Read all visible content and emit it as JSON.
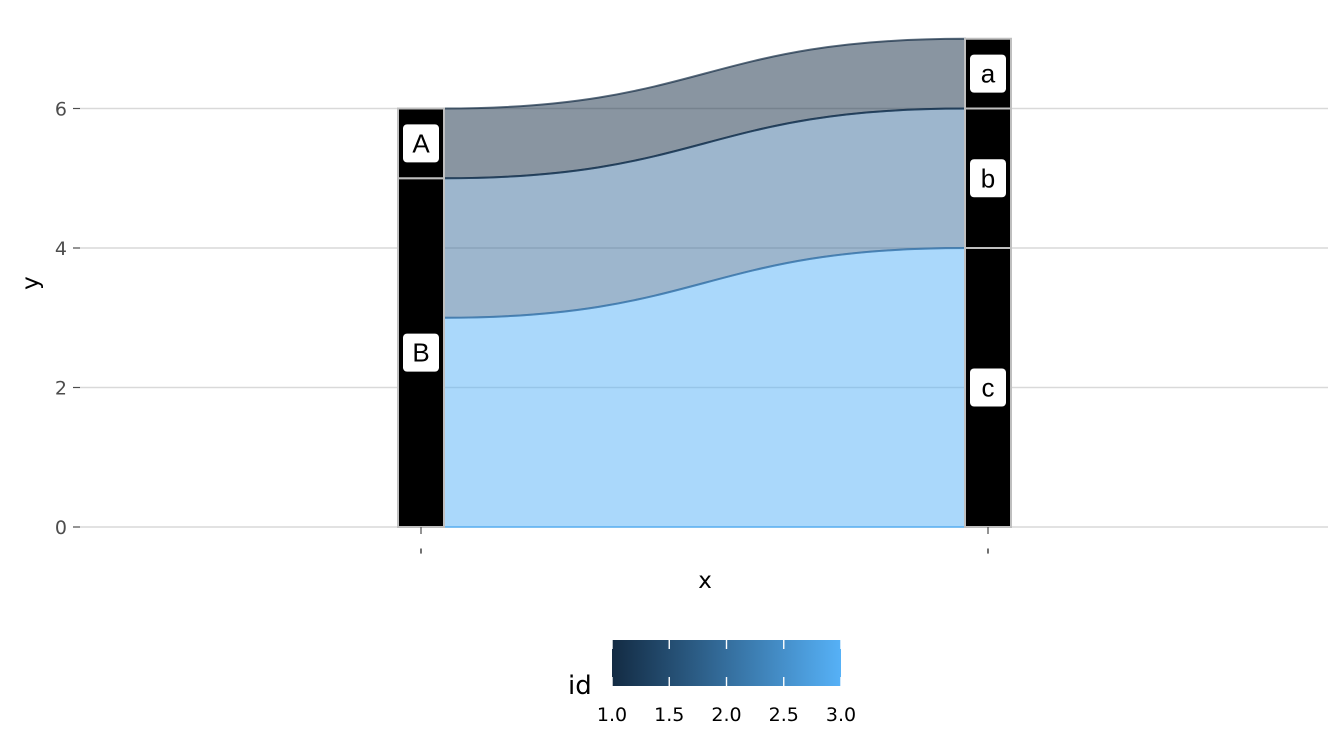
{
  "chart_data": {
    "type": "alluvial",
    "xlabel": "x",
    "ylabel": "y",
    "ylim": [
      0,
      7
    ],
    "y_ticks": [
      0,
      2,
      4,
      6
    ],
    "y_tick_labels": [
      "0",
      "2",
      "4",
      "6"
    ],
    "axes": [
      {
        "x_tick_label": "'",
        "strata": [
          {
            "label": "B",
            "ymin": 0,
            "ymax": 5
          },
          {
            "label": "A",
            "ymin": 5,
            "ymax": 6
          }
        ]
      },
      {
        "x_tick_label": "'",
        "strata": [
          {
            "label": "c",
            "ymin": 0,
            "ymax": 4
          },
          {
            "label": "b",
            "ymin": 4,
            "ymax": 6
          },
          {
            "label": "a",
            "ymin": 6,
            "ymax": 7
          }
        ]
      }
    ],
    "flows": [
      {
        "id": 3,
        "from": [
          0,
          3
        ],
        "to": [
          0,
          4
        ],
        "color": "#56b1f7"
      },
      {
        "id": 2,
        "from": [
          3,
          5
        ],
        "to": [
          4,
          6
        ],
        "color": "#3b6e9c"
      },
      {
        "id": 1,
        "from": [
          5,
          6
        ],
        "to": [
          6,
          7
        ],
        "color": "#132b43"
      }
    ],
    "legend": {
      "title": "id",
      "low": 1.0,
      "high": 3.0,
      "low_color": "#132b43",
      "high_color": "#56b1f7",
      "breaks": [
        "1.0",
        "1.5",
        "2.0",
        "2.5",
        "3.0"
      ],
      "position": "bottom"
    },
    "grid": true,
    "stratum_fill": "#000000",
    "stratum_border": "#bfbfbf",
    "flow_alpha": 0.5
  }
}
